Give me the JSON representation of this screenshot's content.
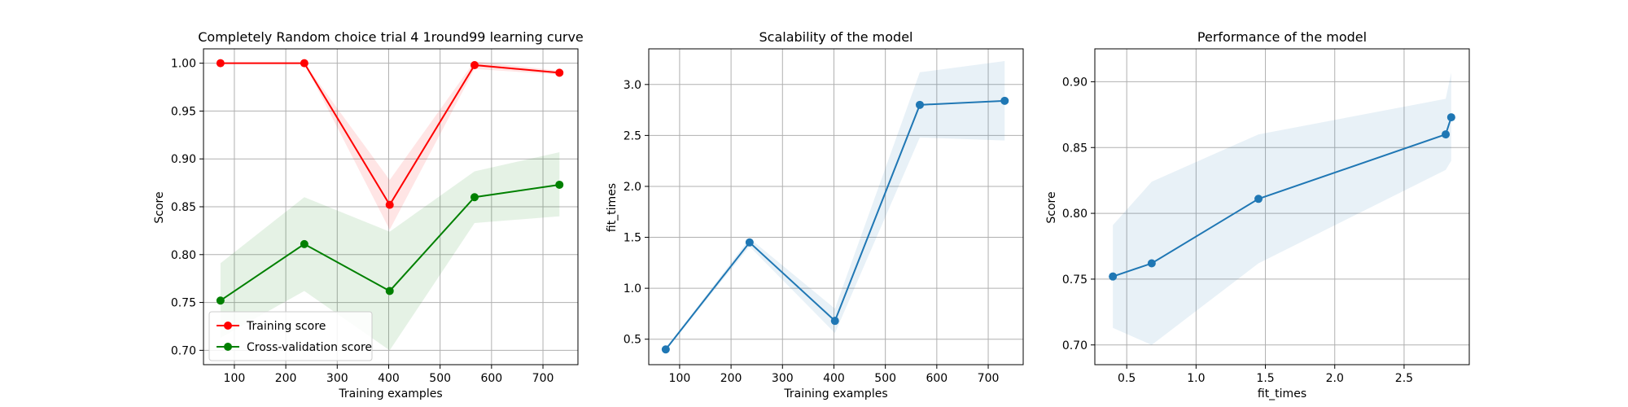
{
  "chart_data": [
    {
      "type": "line",
      "title": "Completely Random choice trial 4 1round99 learning curve",
      "xlabel": "Training examples",
      "ylabel": "Score",
      "xlim": [
        40,
        768
      ],
      "ylim": [
        0.685,
        1.015
      ],
      "xticks": [
        100,
        200,
        300,
        400,
        500,
        600,
        700
      ],
      "yticks": [
        0.7,
        0.75,
        0.8,
        0.85,
        0.9,
        0.95,
        1.0
      ],
      "grid": true,
      "legend": {
        "location": "lower-left",
        "entries": [
          "Training score",
          "Cross-validation score"
        ]
      },
      "x": [
        73,
        236,
        402,
        567,
        732
      ],
      "series": [
        {
          "name": "Training score",
          "color": "#ff0000",
          "values": [
            1.0,
            1.0,
            0.852,
            0.998,
            0.99
          ],
          "band_lower": [
            1.0,
            1.0,
            0.826,
            0.994,
            0.988
          ],
          "band_upper": [
            1.0,
            1.0,
            0.878,
            1.002,
            0.992
          ]
        },
        {
          "name": "Cross-validation score",
          "color": "#008000",
          "values": [
            0.752,
            0.811,
            0.762,
            0.86,
            0.873
          ],
          "band_lower": [
            0.713,
            0.762,
            0.7,
            0.833,
            0.84
          ],
          "band_upper": [
            0.791,
            0.86,
            0.824,
            0.887,
            0.907
          ]
        }
      ]
    },
    {
      "type": "line",
      "title": "Scalability of the model",
      "xlabel": "Training examples",
      "ylabel": "fit_times",
      "xlim": [
        40,
        768
      ],
      "ylim": [
        0.25,
        3.35
      ],
      "xticks": [
        100,
        200,
        300,
        400,
        500,
        600,
        700
      ],
      "yticks": [
        0.5,
        1.0,
        1.5,
        2.0,
        2.5,
        3.0
      ],
      "grid": true,
      "x": [
        73,
        236,
        402,
        567,
        732
      ],
      "series": [
        {
          "color": "#1f77b4",
          "values": [
            0.4,
            1.45,
            0.68,
            2.8,
            2.84
          ],
          "band_lower": [
            0.39,
            1.41,
            0.56,
            2.48,
            2.45
          ],
          "band_upper": [
            0.41,
            1.49,
            0.8,
            3.12,
            3.23
          ]
        }
      ]
    },
    {
      "type": "line",
      "title": "Performance of the model",
      "xlabel": "fit_times",
      "ylabel": "Score",
      "xlim": [
        0.27,
        2.97
      ],
      "ylim": [
        0.685,
        0.925
      ],
      "xticks": [
        0.5,
        1.0,
        1.5,
        2.0,
        2.5
      ],
      "yticks": [
        0.7,
        0.75,
        0.8,
        0.85,
        0.9
      ],
      "grid": true,
      "x": [
        0.4,
        0.68,
        1.45,
        2.8,
        2.84
      ],
      "series": [
        {
          "color": "#1f77b4",
          "values": [
            0.752,
            0.762,
            0.811,
            0.86,
            0.873
          ],
          "band_lower": [
            0.713,
            0.7,
            0.762,
            0.833,
            0.84
          ],
          "band_upper": [
            0.791,
            0.824,
            0.86,
            0.887,
            0.907
          ]
        }
      ]
    }
  ]
}
